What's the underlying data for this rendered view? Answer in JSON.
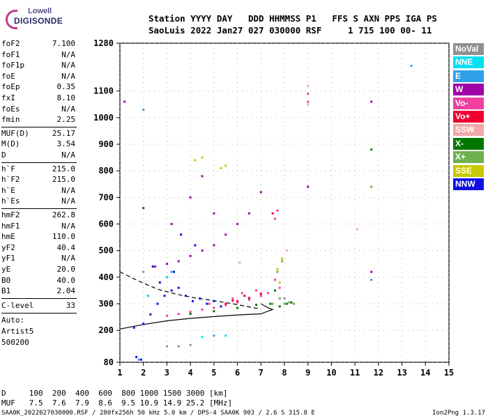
{
  "logo": {
    "line1": "Lowell",
    "line2": "DIGISONDE"
  },
  "header": {
    "row1": "Station YYYY DAY   DDD HHMMSS P1   FFS S AXN PPS IGA PS",
    "row2": "SaoLuis 2022 Jan27 027 030000 RSF     1 715 100 00- 11"
  },
  "params_group1": [
    {
      "k": "foF2",
      "v": "7.100"
    },
    {
      "k": "foF1",
      "v": "N/A"
    },
    {
      "k": "foF1p",
      "v": "N/A"
    },
    {
      "k": "foE",
      "v": "N/A"
    },
    {
      "k": "foEp",
      "v": "0.35"
    },
    {
      "k": "fxI",
      "v": "8.10"
    },
    {
      "k": "foEs",
      "v": "N/A"
    },
    {
      "k": "fmin",
      "v": "2.25"
    }
  ],
  "params_group2": [
    {
      "k": "MUF(D)",
      "v": "25.17"
    },
    {
      "k": "M(D)",
      "v": "3.54"
    },
    {
      "k": "D",
      "v": "N/A"
    }
  ],
  "params_group3": [
    {
      "k": "h`F",
      "v": "215.0"
    },
    {
      "k": "h`F2",
      "v": "215.0"
    },
    {
      "k": "h`E",
      "v": "N/A"
    },
    {
      "k": "h`Es",
      "v": "N/A"
    }
  ],
  "params_group4": [
    {
      "k": "hmF2",
      "v": "262.8"
    },
    {
      "k": "hmF1",
      "v": "N/A"
    },
    {
      "k": "hmE",
      "v": "110.0"
    },
    {
      "k": "yF2",
      "v": "40.4"
    },
    {
      "k": "yF1",
      "v": "N/A"
    },
    {
      "k": "yE",
      "v": "20.0"
    },
    {
      "k": "B0",
      "v": "40.0"
    },
    {
      "k": "B1",
      "v": "2.04"
    }
  ],
  "clevel": {
    "k": "C-level",
    "v": "33"
  },
  "auto_lines": [
    "Auto:",
    "Artist5",
    "500200"
  ],
  "legend": [
    {
      "label": "NoVal",
      "color": "#909090"
    },
    {
      "label": "NNE",
      "color": "#00e0f0"
    },
    {
      "label": "E",
      "color": "#30a0e8"
    },
    {
      "label": "W",
      "color": "#a000a8"
    },
    {
      "label": "Vo-",
      "color": "#f040a0"
    },
    {
      "label": "Vo+",
      "color": "#f00030"
    },
    {
      "label": "SSW",
      "color": "#f0a8a8"
    },
    {
      "label": "X-",
      "color": "#007800"
    },
    {
      "label": "X+",
      "color": "#70b050"
    },
    {
      "label": "SSE",
      "color": "#c8c800"
    },
    {
      "label": "NNW",
      "color": "#1010e0"
    }
  ],
  "bottom": {
    "row1": "D     100  200  400  600  800 1000 1500 3000 [km]",
    "row2": "MUF   7.5  7.6  7.9  8.6  9.5 10.9 14.9 25.2 [MHz]"
  },
  "footer": "SAA0K_2022027030000.RSF / 280fx256h 50 kHz 5.0 km / DPS-4 SAA0K 903 / 2.6 S 315.8 E",
  "version": "Ion2Png 1.3.17",
  "chart_data": {
    "type": "scatter",
    "title": "",
    "xlabel": "",
    "ylabel": "",
    "xlim": [
      1,
      15
    ],
    "ylim": [
      80,
      1280
    ],
    "x_ticks": [
      "1",
      "2",
      "3",
      "4",
      "5",
      "6",
      "7",
      "8",
      "9",
      "10",
      "11",
      "12",
      "13",
      "14",
      "15"
    ],
    "y_ticks": [
      "80",
      "200",
      "300",
      "400",
      "500",
      "600",
      "700",
      "800",
      "900",
      "1000",
      "1100",
      "1280"
    ],
    "series": [
      {
        "color": "#1010e0",
        "points": [
          [
            1.6,
            210
          ],
          [
            2.0,
            225
          ],
          [
            2.3,
            260
          ],
          [
            2.6,
            300
          ],
          [
            2.9,
            330
          ],
          [
            3.2,
            350
          ],
          [
            3.5,
            360
          ],
          [
            3.8,
            330
          ],
          [
            4.1,
            310
          ],
          [
            4.4,
            320
          ],
          [
            4.7,
            300
          ],
          [
            5.0,
            310
          ],
          [
            5.3,
            290
          ],
          [
            2.7,
            380
          ],
          [
            3.0,
            400
          ],
          [
            3.3,
            420
          ],
          [
            2.2,
            330
          ],
          [
            1.9,
            90
          ],
          [
            1.7,
            100
          ],
          [
            2.4,
            440
          ],
          [
            3.6,
            560
          ],
          [
            4.2,
            520
          ]
        ]
      },
      {
        "color": "#f040a0",
        "points": [
          [
            3.0,
            255
          ],
          [
            3.5,
            262
          ],
          [
            4.0,
            270
          ],
          [
            4.5,
            278
          ],
          [
            5.0,
            285
          ],
          [
            5.5,
            295
          ],
          [
            6.0,
            305
          ],
          [
            6.5,
            315
          ],
          [
            7.0,
            330
          ],
          [
            7.3,
            340
          ],
          [
            6.8,
            350
          ],
          [
            6.2,
            340
          ],
          [
            5.8,
            320
          ],
          [
            4.8,
            300
          ],
          [
            7.6,
            390
          ],
          [
            7.8,
            360
          ],
          [
            7.7,
            650
          ],
          [
            7.6,
            620
          ],
          [
            9.0,
            1090
          ],
          [
            9.0,
            1060
          ]
        ]
      },
      {
        "color": "#a000a8",
        "points": [
          [
            2.5,
            440
          ],
          [
            3.0,
            450
          ],
          [
            3.5,
            460
          ],
          [
            4.0,
            480
          ],
          [
            4.5,
            500
          ],
          [
            5.0,
            520
          ],
          [
            5.5,
            560
          ],
          [
            6.0,
            600
          ],
          [
            6.5,
            640
          ],
          [
            7.0,
            720
          ],
          [
            3.2,
            600
          ],
          [
            4.0,
            700
          ],
          [
            4.5,
            780
          ],
          [
            5.0,
            640
          ],
          [
            2.0,
            660
          ],
          [
            1.2,
            1060
          ],
          [
            11.7,
            1060
          ],
          [
            9.0,
            740
          ],
          [
            11.7,
            420
          ]
        ]
      },
      {
        "color": "#f00030",
        "points": [
          [
            5.5,
            300
          ],
          [
            6.0,
            310
          ],
          [
            6.5,
            322
          ],
          [
            7.0,
            338
          ],
          [
            6.3,
            330
          ],
          [
            5.8,
            312
          ],
          [
            7.5,
            640
          ]
        ]
      },
      {
        "color": "#007800",
        "points": [
          [
            4.0,
            262
          ],
          [
            5.0,
            272
          ],
          [
            6.0,
            284
          ],
          [
            6.8,
            296
          ],
          [
            7.4,
            300
          ],
          [
            7.8,
            290
          ],
          [
            8.1,
            300
          ],
          [
            8.3,
            305
          ],
          [
            7.6,
            350
          ],
          [
            11.7,
            880
          ]
        ]
      },
      {
        "color": "#70b050",
        "points": [
          [
            7.5,
            300
          ],
          [
            7.8,
            320
          ],
          [
            8.0,
            300
          ],
          [
            8.2,
            305
          ],
          [
            8.4,
            300
          ],
          [
            7.7,
            420
          ],
          [
            7.9,
            460
          ],
          [
            11.7,
            740
          ]
        ]
      },
      {
        "color": "#c8c800",
        "points": [
          [
            7.7,
            430
          ],
          [
            7.9,
            470
          ],
          [
            7.8,
            380
          ],
          [
            5.3,
            810
          ],
          [
            5.5,
            820
          ],
          [
            4.2,
            840
          ],
          [
            4.5,
            850
          ]
        ]
      },
      {
        "color": "#30a0e8",
        "points": [
          [
            13.4,
            1195
          ],
          [
            2.0,
            1030
          ],
          [
            1.8,
            90
          ],
          [
            5.0,
            180
          ],
          [
            11.7,
            390
          ],
          [
            3.2,
            420
          ]
        ]
      },
      {
        "color": "#00e0f0",
        "points": [
          [
            2.2,
            330
          ],
          [
            3.0,
            400
          ],
          [
            5.5,
            180
          ],
          [
            4.5,
            175
          ]
        ]
      },
      {
        "color": "#f0a8a8",
        "points": [
          [
            9.0,
            1120
          ],
          [
            9.0,
            1050
          ],
          [
            6.1,
            455
          ],
          [
            11.1,
            580
          ],
          [
            8.1,
            500
          ]
        ]
      },
      {
        "color": "#909090",
        "points": [
          [
            2.0,
            420
          ],
          [
            3.5,
            140
          ],
          [
            4.0,
            145
          ],
          [
            3.0,
            140
          ],
          [
            8.0,
            320
          ]
        ]
      }
    ],
    "curves": [
      {
        "name": "",
        "style": "solid",
        "points": [
          [
            1,
            205
          ],
          [
            2,
            222
          ],
          [
            3,
            236
          ],
          [
            4,
            245
          ],
          [
            5,
            252
          ],
          [
            6,
            258
          ],
          [
            7,
            262
          ],
          [
            7.3,
            272
          ],
          [
            7.5,
            278
          ],
          [
            7.3,
            285
          ],
          [
            7.0,
            300
          ]
        ]
      },
      {
        "name": "",
        "style": "dashed",
        "points": [
          [
            1,
            420
          ],
          [
            1.8,
            385
          ],
          [
            2.6,
            355
          ],
          [
            3.4,
            336
          ],
          [
            4.2,
            322
          ],
          [
            5.0,
            312
          ],
          [
            5.8,
            300
          ],
          [
            6.4,
            290
          ],
          [
            7.0,
            280
          ]
        ]
      }
    ]
  }
}
